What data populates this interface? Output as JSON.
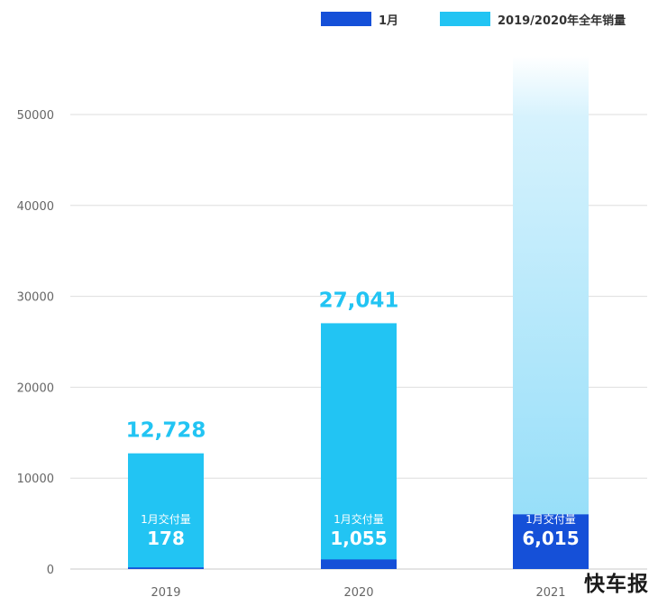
{
  "chart_data": {
    "type": "bar",
    "categories": [
      "2019",
      "2020",
      "2021"
    ],
    "ylim": [
      0,
      55000
    ],
    "yticks": [
      0,
      10000,
      20000,
      30000,
      40000,
      50000
    ],
    "grid": true,
    "legend_position": "top-right",
    "series": [
      {
        "name": "1月",
        "values": [
          178,
          1055,
          6015
        ],
        "color": "#1550d8"
      },
      {
        "name": "2019/2020年全年销量",
        "values": [
          12728,
          27041,
          null
        ],
        "color": "#22c4f3"
      }
    ],
    "top_labels": [
      "12,728",
      "27,041",
      ""
    ],
    "inner_caption": "1月交付量",
    "inner_values": [
      "178",
      "1,055",
      "6,015"
    ],
    "fade_color": "#8fdcf8"
  },
  "legend": {
    "items": [
      {
        "label": "1月",
        "color": "#1550d8"
      },
      {
        "label": "2019/2020年全年销量",
        "color": "#22c4f3"
      }
    ]
  },
  "watermark": "快车报"
}
